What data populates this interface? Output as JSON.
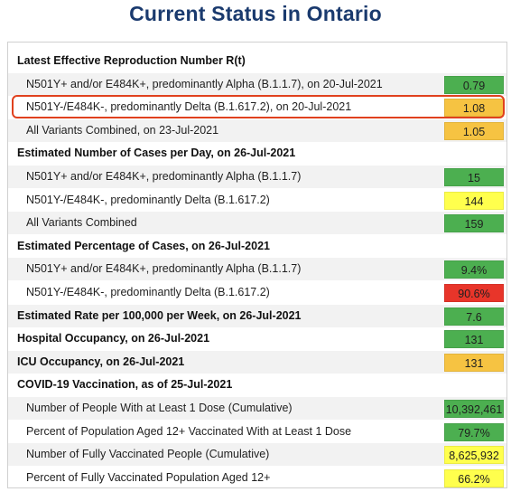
{
  "title": "Current Status in Ontario",
  "colors": {
    "green": "#4caf50",
    "orange": "#f6c342",
    "yellow": "#ffff4d",
    "red": "#e8352a",
    "highlight_border": "#e0411e"
  },
  "rows": [
    {
      "label": "Latest Effective Reproduction Number R(t)",
      "type": "head"
    },
    {
      "label": "N501Y+ and/or E484K+, predominantly Alpha (B.1.1.7), on 20-Jul-2021",
      "type": "sub",
      "value": "0.79",
      "color": "green"
    },
    {
      "label": "N501Y-/E484K-, predominantly Delta (B.1.617.2), on 20-Jul-2021",
      "type": "sub",
      "value": "1.08",
      "color": "orange",
      "highlighted": true
    },
    {
      "label": "All Variants Combined, on 23-Jul-2021",
      "type": "sub",
      "value": "1.05",
      "color": "orange"
    },
    {
      "label": "Estimated Number of Cases per Day, on 26-Jul-2021",
      "type": "head"
    },
    {
      "label": "N501Y+ and/or E484K+, predominantly Alpha (B.1.1.7)",
      "type": "sub",
      "value": "15",
      "color": "green"
    },
    {
      "label": "N501Y-/E484K-, predominantly Delta (B.1.617.2)",
      "type": "sub",
      "value": "144",
      "color": "yellow"
    },
    {
      "label": "All Variants Combined",
      "type": "sub",
      "value": "159",
      "color": "green"
    },
    {
      "label": "Estimated Percentage of Cases, on 26-Jul-2021",
      "type": "head"
    },
    {
      "label": "N501Y+ and/or E484K+, predominantly Alpha (B.1.1.7)",
      "type": "sub",
      "value": "9.4%",
      "color": "green"
    },
    {
      "label": "N501Y-/E484K-, predominantly Delta (B.1.617.2)",
      "type": "sub",
      "value": "90.6%",
      "color": "red"
    },
    {
      "label": "Estimated Rate per 100,000 per Week, on 26-Jul-2021",
      "type": "head",
      "value": "7.6",
      "color": "green"
    },
    {
      "label": "Hospital Occupancy, on 26-Jul-2021",
      "type": "head",
      "value": "131",
      "color": "green"
    },
    {
      "label": "ICU Occupancy, on 26-Jul-2021",
      "type": "head",
      "value": "131",
      "color": "orange"
    },
    {
      "label": "COVID-19 Vaccination, as of 25-Jul-2021",
      "type": "head"
    },
    {
      "label": "Number of People With at Least 1 Dose (Cumulative)",
      "type": "sub",
      "value": "10,392,461",
      "color": "green"
    },
    {
      "label": "Percent of Population Aged 12+ Vaccinated With at Least 1 Dose",
      "type": "sub",
      "value": "79.7%",
      "color": "green"
    },
    {
      "label": "Number of Fully Vaccinated People (Cumulative)",
      "type": "sub",
      "value": "8,625,932",
      "color": "yellow"
    },
    {
      "label": "Percent of Fully Vaccinated Population Aged 12+",
      "type": "sub",
      "value": "66.2%",
      "color": "yellow"
    }
  ]
}
